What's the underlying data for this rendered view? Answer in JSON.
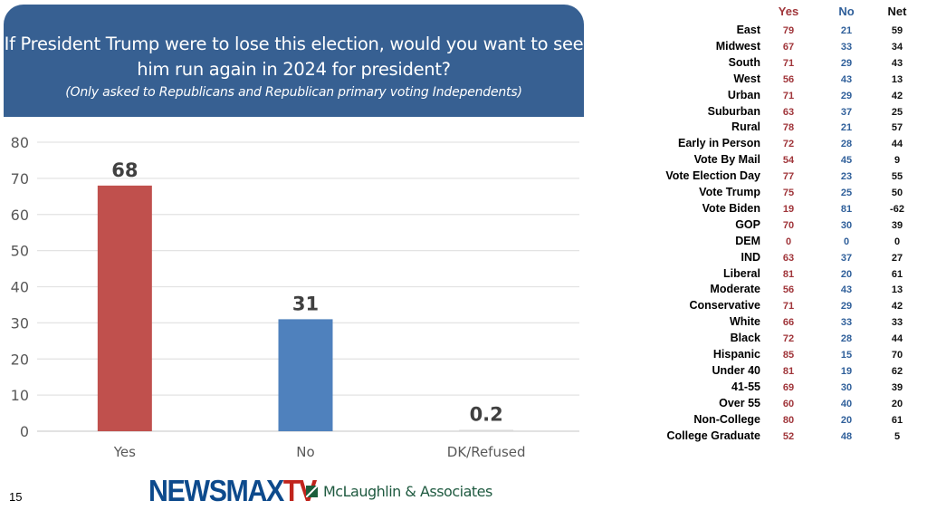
{
  "header": {
    "question": "If President Trump were to lose this election, would you want to see him run again in 2024 for president?",
    "note": "(Only asked to Republicans and Republican primary voting Independents)"
  },
  "chart_data": {
    "type": "bar",
    "title": "If President Trump were to lose this election, would you want to see him run again in 2024 for president?",
    "categories": [
      "Yes",
      "No",
      "DK/Refused"
    ],
    "values": [
      68,
      31,
      0.2
    ],
    "value_labels": [
      "68",
      "31",
      "0.2"
    ],
    "colors": [
      "#c0504d",
      "#4f81bd",
      "#d9d9d9"
    ],
    "ylim": [
      0,
      80
    ],
    "yticks": [
      0,
      10,
      20,
      30,
      40,
      50,
      60,
      70,
      80
    ],
    "grid": true,
    "xlabel": "",
    "ylabel": ""
  },
  "table": {
    "headers": [
      "Yes",
      "No",
      "Net"
    ],
    "rows": [
      {
        "label": "East",
        "yes": "79",
        "no": "21",
        "net": "59"
      },
      {
        "label": "Midwest",
        "yes": "67",
        "no": "33",
        "net": "34"
      },
      {
        "label": "South",
        "yes": "71",
        "no": "29",
        "net": "43"
      },
      {
        "label": "West",
        "yes": "56",
        "no": "43",
        "net": "13"
      },
      {
        "label": "Urban",
        "yes": "71",
        "no": "29",
        "net": "42"
      },
      {
        "label": "Suburban",
        "yes": "63",
        "no": "37",
        "net": "25"
      },
      {
        "label": "Rural",
        "yes": "78",
        "no": "21",
        "net": "57"
      },
      {
        "label": "Early in Person",
        "yes": "72",
        "no": "28",
        "net": "44"
      },
      {
        "label": "Vote By Mail",
        "yes": "54",
        "no": "45",
        "net": "9"
      },
      {
        "label": "Vote Election Day",
        "yes": "77",
        "no": "23",
        "net": "55"
      },
      {
        "label": "Vote Trump",
        "yes": "75",
        "no": "25",
        "net": "50"
      },
      {
        "label": "Vote Biden",
        "yes": "19",
        "no": "81",
        "net": "-62"
      },
      {
        "label": "GOP",
        "yes": "70",
        "no": "30",
        "net": "39"
      },
      {
        "label": "DEM",
        "yes": "0",
        "no": "0",
        "net": "0"
      },
      {
        "label": "IND",
        "yes": "63",
        "no": "37",
        "net": "27"
      },
      {
        "label": "Liberal",
        "yes": "81",
        "no": "20",
        "net": "61"
      },
      {
        "label": "Moderate",
        "yes": "56",
        "no": "43",
        "net": "13"
      },
      {
        "label": "Conservative",
        "yes": "71",
        "no": "29",
        "net": "42"
      },
      {
        "label": "White",
        "yes": "66",
        "no": "33",
        "net": "33"
      },
      {
        "label": "Black",
        "yes": "72",
        "no": "28",
        "net": "44"
      },
      {
        "label": "Hispanic",
        "yes": "85",
        "no": "15",
        "net": "70"
      },
      {
        "label": "Under 40",
        "yes": "81",
        "no": "19",
        "net": "62"
      },
      {
        "label": "41-55",
        "yes": "69",
        "no": "30",
        "net": "39"
      },
      {
        "label": "Over 55",
        "yes": "60",
        "no": "40",
        "net": "20"
      },
      {
        "label": "Non-College",
        "yes": "80",
        "no": "20",
        "net": "61"
      },
      {
        "label": "College Graduate",
        "yes": "52",
        "no": "48",
        "net": "5"
      }
    ]
  },
  "footer": {
    "page_number": "15",
    "logo_newsmax": "NEWSMAX",
    "logo_tv": "TV",
    "pollster": "McLaughlin & Associates"
  }
}
